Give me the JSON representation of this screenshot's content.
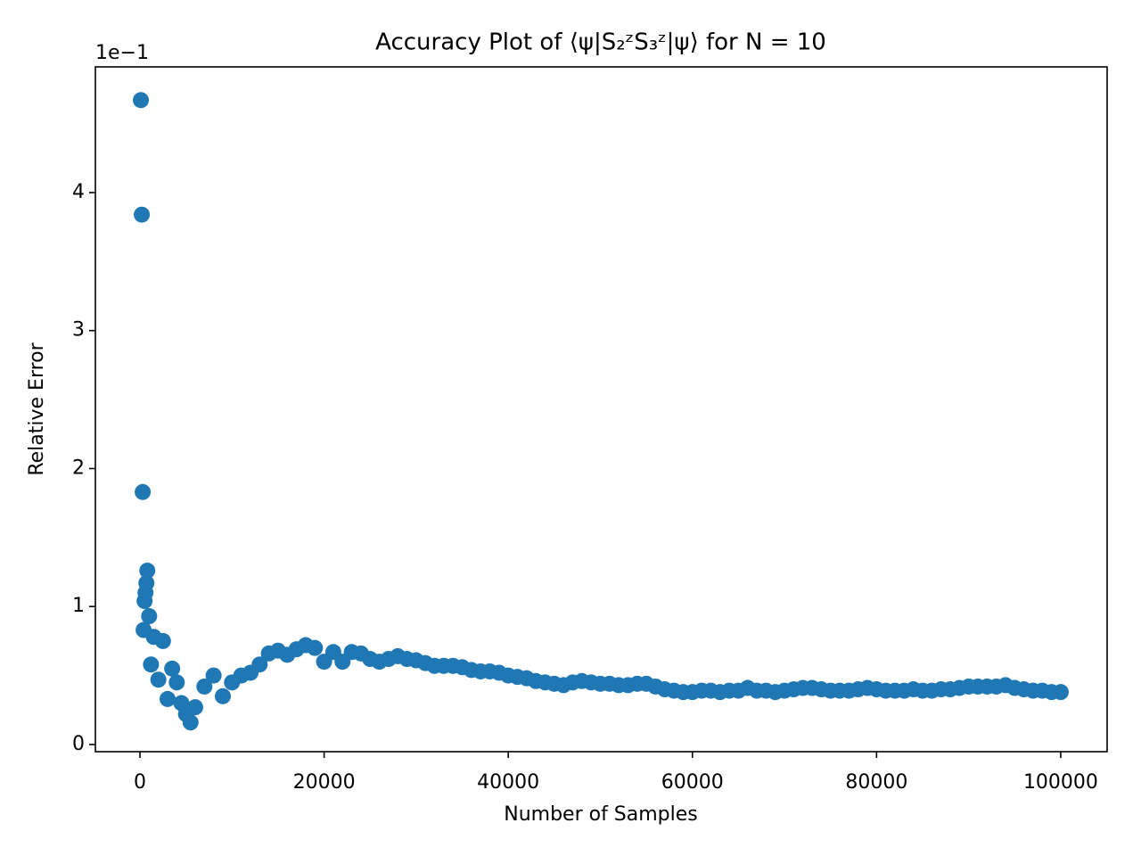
{
  "chart_data": {
    "type": "scatter",
    "title": "Accuracy Plot of ⟨ψ|S₂ᶻS₃ᶻ|ψ⟩ for N = 10",
    "x_label": "Number of Samples",
    "y_label": "Relative Error",
    "y_offset_text": "1e−1",
    "xlim": [
      -4840,
      105040
    ],
    "ylim": [
      -0.052,
      4.911
    ],
    "xticks": [
      0,
      20000,
      40000,
      60000,
      80000,
      100000
    ],
    "yticks": [
      0,
      1,
      2,
      3,
      4
    ],
    "grid": false,
    "x": [
      100,
      200,
      300,
      400,
      500,
      600,
      700,
      800,
      1000,
      1200,
      1500,
      2000,
      2500,
      3000,
      3500,
      4000,
      4500,
      5000,
      5500,
      6000,
      7000,
      8000,
      9000,
      10000,
      11000,
      12000,
      13000,
      14000,
      15000,
      16000,
      17000,
      18000,
      19000,
      20000,
      21000,
      22000,
      23000,
      24000,
      25000,
      26000,
      27000,
      28000,
      29000,
      30000,
      31000,
      32000,
      33000,
      34000,
      35000,
      36000,
      37000,
      38000,
      39000,
      40000,
      41000,
      42000,
      43000,
      44000,
      45000,
      46000,
      47000,
      48000,
      49000,
      50000,
      51000,
      52000,
      53000,
      54000,
      55000,
      56000,
      57000,
      58000,
      59000,
      60000,
      61000,
      62000,
      63000,
      64000,
      65000,
      66000,
      67000,
      68000,
      69000,
      70000,
      71000,
      72000,
      73000,
      74000,
      75000,
      76000,
      77000,
      78000,
      79000,
      80000,
      81000,
      82000,
      83000,
      84000,
      85000,
      86000,
      87000,
      88000,
      89000,
      90000,
      91000,
      92000,
      93000,
      94000,
      95000,
      96000,
      97000,
      98000,
      99000,
      100000
    ],
    "series": [
      {
        "color": "#1f77b4",
        "values": [
          4.67,
          3.84,
          1.83,
          0.83,
          1.04,
          1.1,
          1.17,
          1.26,
          0.93,
          0.58,
          0.78,
          0.47,
          0.75,
          0.33,
          0.55,
          0.45,
          0.3,
          0.22,
          0.16,
          0.27,
          0.42,
          0.5,
          0.35,
          0.45,
          0.5,
          0.52,
          0.58,
          0.66,
          0.68,
          0.65,
          0.69,
          0.72,
          0.7,
          0.6,
          0.67,
          0.6,
          0.67,
          0.66,
          0.62,
          0.6,
          0.62,
          0.64,
          0.62,
          0.61,
          0.59,
          0.57,
          0.57,
          0.57,
          0.56,
          0.54,
          0.53,
          0.53,
          0.52,
          0.5,
          0.49,
          0.48,
          0.46,
          0.45,
          0.44,
          0.43,
          0.45,
          0.46,
          0.45,
          0.44,
          0.44,
          0.43,
          0.43,
          0.44,
          0.44,
          0.42,
          0.4,
          0.39,
          0.38,
          0.38,
          0.39,
          0.39,
          0.38,
          0.39,
          0.39,
          0.41,
          0.39,
          0.39,
          0.38,
          0.39,
          0.4,
          0.41,
          0.41,
          0.4,
          0.39,
          0.39,
          0.39,
          0.4,
          0.41,
          0.4,
          0.39,
          0.39,
          0.39,
          0.4,
          0.39,
          0.39,
          0.4,
          0.4,
          0.41,
          0.42,
          0.42,
          0.42,
          0.42,
          0.43,
          0.41,
          0.4,
          0.39,
          0.39,
          0.38,
          0.38
        ]
      }
    ]
  }
}
